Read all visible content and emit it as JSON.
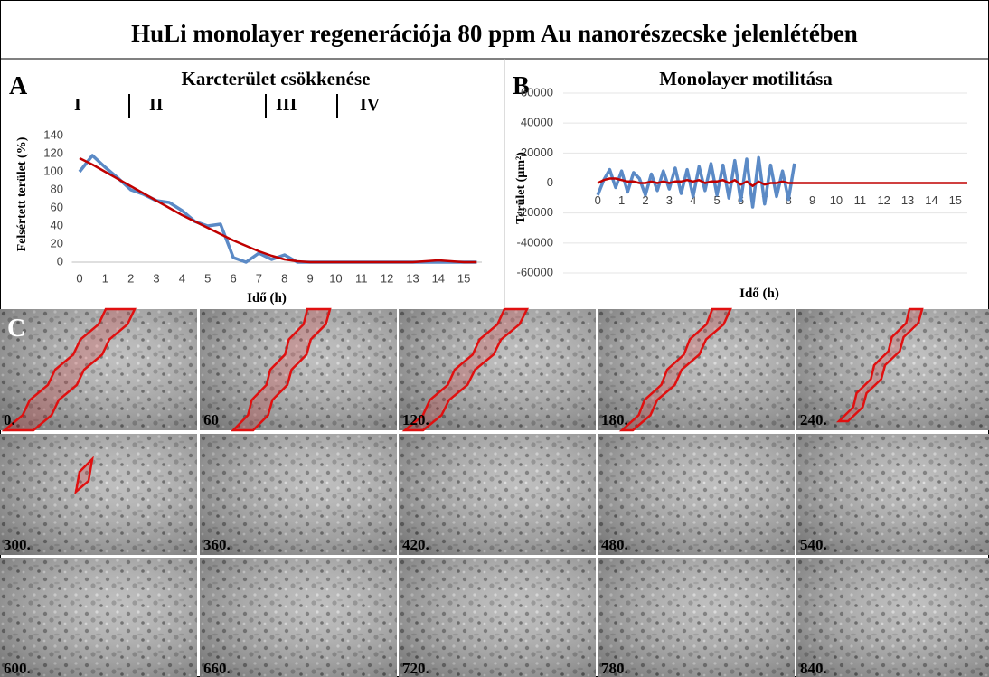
{
  "title": "HuLi monolayer regenerációja 80 ppm Au nanorészecske jelenlétében",
  "chart_data": [
    {
      "type": "line",
      "panel": "A",
      "title": "Karcterület csökkenése",
      "xlabel": "Idő (h)",
      "ylabel": "Felsértett terület (%)",
      "annotations": [
        "I",
        "II",
        "III",
        "IV"
      ],
      "x": [
        0,
        0.5,
        1,
        1.5,
        2,
        2.5,
        3,
        3.5,
        4,
        4.5,
        5,
        5.5,
        6,
        6.5,
        7,
        7.5,
        8,
        8.5,
        9,
        9.5,
        10,
        10.5,
        11,
        11.5,
        12,
        12.5,
        13,
        13.5,
        14,
        14.5,
        15,
        15.5
      ],
      "series": [
        {
          "color": "#5b8ac6",
          "values": [
            100,
            118,
            105,
            93,
            80,
            75,
            68,
            66,
            57,
            45,
            40,
            42,
            5,
            0,
            10,
            3,
            8,
            0,
            0,
            0,
            0,
            0,
            0,
            0,
            0,
            0,
            0,
            0,
            0,
            0,
            0,
            0
          ]
        },
        {
          "color": "#c00000",
          "values": [
            115,
            108,
            100,
            92,
            84,
            76,
            68,
            60,
            52,
            45,
            38,
            31,
            24,
            18,
            12,
            7,
            3,
            1,
            0,
            0,
            0,
            0,
            0,
            0,
            0,
            0,
            0,
            1,
            2,
            1,
            0,
            0
          ]
        }
      ],
      "xlim": [
        -0.3,
        15.7
      ],
      "xticks": [
        0,
        1,
        2,
        3,
        4,
        5,
        6,
        7,
        8,
        9,
        10,
        11,
        12,
        13,
        14,
        15
      ],
      "ylim": [
        0,
        140
      ],
      "yticks": [
        0,
        20,
        40,
        60,
        80,
        100,
        120,
        140
      ],
      "grid": false
    },
    {
      "type": "line",
      "panel": "B",
      "title": "Monolayer motilitása",
      "xlabel": "Idő (h)",
      "ylabel": "Terület (µm²)",
      "x": [
        0,
        0.25,
        0.5,
        0.75,
        1,
        1.25,
        1.5,
        1.75,
        2,
        2.25,
        2.5,
        2.75,
        3,
        3.25,
        3.5,
        3.75,
        4,
        4.25,
        4.5,
        4.75,
        5,
        5.25,
        5.5,
        5.75,
        6,
        6.25,
        6.5,
        6.75,
        7,
        7.25,
        7.5,
        7.75,
        8,
        8.25,
        8.5,
        8.75,
        9,
        9.25,
        9.5,
        9.75,
        10,
        10.25,
        10.5,
        10.75,
        11,
        11.25,
        11.5,
        11.75,
        12,
        12.25,
        12.5,
        12.75,
        13,
        13.25,
        13.5,
        13.75,
        14,
        14.25,
        14.5,
        14.75,
        15,
        15.25,
        15.5
      ],
      "series": [
        {
          "color": "#5b8ac6",
          "values": [
            -8000,
            2000,
            9000,
            -3000,
            8000,
            -6000,
            7000,
            3000,
            -8000,
            6000,
            -5000,
            8000,
            -4000,
            10000,
            -7000,
            9000,
            -9000,
            11000,
            -5000,
            13000,
            -8000,
            12000,
            -10000,
            15000,
            -12000,
            16000,
            -16000,
            17000,
            -14000,
            12000,
            -9000,
            8000,
            -11000,
            13000,
            null,
            null,
            null,
            null,
            null,
            null,
            null,
            null,
            null,
            null,
            null,
            null,
            null,
            null,
            null,
            null,
            null,
            null,
            null,
            null,
            null,
            null,
            null,
            null,
            null,
            null,
            null,
            null,
            null
          ]
        },
        {
          "color": "#c00000",
          "values": [
            0,
            2000,
            3000,
            3000,
            2000,
            1000,
            1000,
            0,
            0,
            1000,
            0,
            1000,
            0,
            1000,
            1000,
            2000,
            1000,
            2000,
            0,
            1000,
            1000,
            2000,
            0,
            2000,
            -1000,
            1000,
            -2000,
            1000,
            -1000,
            0,
            0,
            1000,
            0,
            0,
            0,
            0,
            0,
            0,
            0,
            0,
            0,
            0,
            0,
            0,
            0,
            0,
            0,
            0,
            0,
            0,
            0,
            0,
            0,
            0,
            0,
            0,
            0,
            0,
            0,
            0,
            0,
            0,
            0
          ]
        }
      ],
      "xlim": [
        -0.5,
        15.5
      ],
      "xticks": [
        0,
        1,
        2,
        3,
        4,
        5,
        6,
        7,
        8,
        9,
        10,
        11,
        12,
        13,
        14,
        15
      ],
      "ylim": [
        -60000,
        60000
      ],
      "yticks": [
        -60000,
        -40000,
        -20000,
        0,
        20000,
        40000,
        60000
      ],
      "grid": true
    }
  ],
  "panel_c": {
    "label": "C",
    "frames": [
      "0.",
      "60",
      "120.",
      "180.",
      "240.",
      "300.",
      "360.",
      "420.",
      "480.",
      "540.",
      "600.",
      "660.",
      "720.",
      "780.",
      "840."
    ]
  }
}
